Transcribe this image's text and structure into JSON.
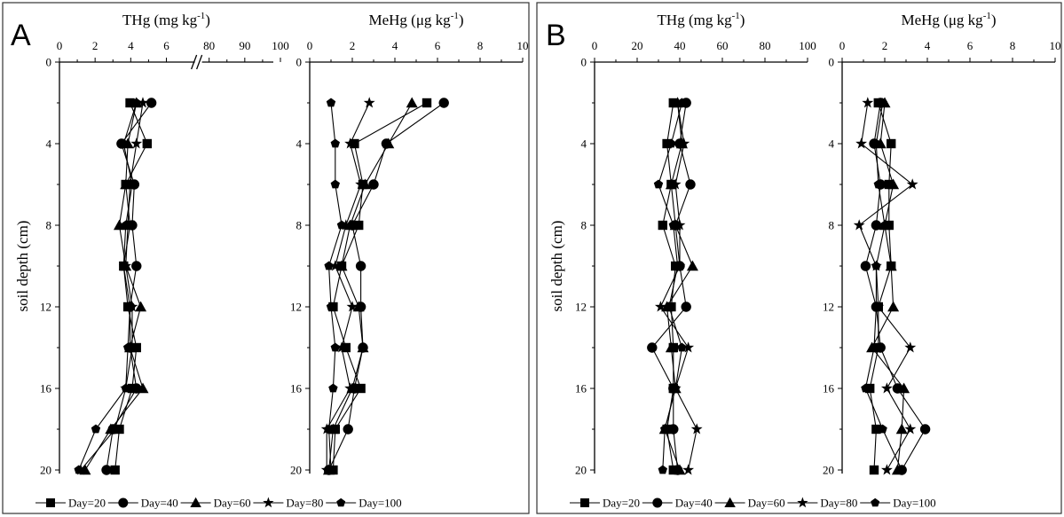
{
  "chart_data": [
    {
      "panel": "A",
      "type": "line",
      "orientation": "depth-profile",
      "title": "THg (mg kg-1)",
      "title_main": "THg (mg kg",
      "title_sup": "-1",
      "ylabel": "soil depth (cm)",
      "ylim": [
        0,
        20
      ],
      "yticks": [
        0,
        4,
        8,
        12,
        16,
        20
      ],
      "xlim": [
        0,
        100
      ],
      "xticks": [
        "0",
        "2",
        "4",
        "6",
        "80",
        "90",
        "100"
      ],
      "axis_break": true,
      "depths": [
        2,
        4,
        6,
        8,
        10,
        12,
        14,
        16,
        18,
        20
      ],
      "series": [
        {
          "name": "Day=20",
          "marker": "square",
          "values": [
            3.3,
            4.1,
            3.1,
            3.3,
            3.0,
            3.2,
            3.6,
            3.4,
            2.8,
            2.6
          ]
        },
        {
          "name": "Day=40",
          "marker": "circle",
          "values": [
            4.3,
            2.9,
            3.5,
            3.4,
            3.6,
            3.3,
            3.3,
            3.6,
            2.5,
            2.2
          ]
        },
        {
          "name": "Day=60",
          "marker": "triangle",
          "values": [
            3.6,
            3.2,
            3.1,
            2.8,
            3.1,
            3.8,
            3.3,
            3.9,
            2.4,
            1.2
          ]
        },
        {
          "name": "Day=80",
          "marker": "star",
          "values": [
            3.9,
            3.6,
            3.3,
            3.2,
            3.1,
            3.4,
            3.4,
            3.1,
            2.6,
            1.0
          ]
        },
        {
          "name": "Day=100",
          "marker": "pentagon",
          "values": [
            3.6,
            3.0,
            3.4,
            3.1,
            3.0,
            3.3,
            3.2,
            3.1,
            1.7,
            0.9
          ]
        }
      ]
    },
    {
      "panel": "A",
      "type": "line",
      "orientation": "depth-profile",
      "title": "MeHg (μg kg-1)",
      "title_main": "MeHg (μg kg",
      "title_sup": "-1",
      "ylim": [
        0,
        20
      ],
      "yticks": [
        0,
        4,
        8,
        12,
        16,
        20
      ],
      "xlim": [
        0,
        10
      ],
      "xticks": [
        "0",
        "2",
        "4",
        "6",
        "8",
        "10"
      ],
      "depths": [
        2,
        4,
        6,
        8,
        10,
        12,
        14,
        16,
        18,
        20
      ],
      "series": [
        {
          "name": "Day=20",
          "marker": "square",
          "values": [
            5.5,
            2.1,
            2.5,
            2.3,
            1.5,
            1.1,
            1.7,
            2.4,
            1.2,
            1.1
          ]
        },
        {
          "name": "Day=40",
          "marker": "circle",
          "values": [
            6.3,
            3.6,
            3.0,
            2.0,
            2.4,
            2.4,
            2.5,
            2.1,
            1.8,
            0.9
          ]
        },
        {
          "name": "Day=60",
          "marker": "triangle",
          "values": [
            4.8,
            3.7,
            2.6,
            1.9,
            1.5,
            2.3,
            2.5,
            2.0,
            1.1,
            0.9
          ]
        },
        {
          "name": "Day=80",
          "marker": "star",
          "values": [
            2.8,
            1.9,
            2.4,
            1.7,
            1.2,
            2.0,
            1.5,
            1.9,
            0.8,
            0.8
          ]
        },
        {
          "name": "Day=100",
          "marker": "pentagon",
          "values": [
            1.0,
            1.2,
            1.2,
            1.5,
            0.9,
            1.0,
            1.2,
            1.1,
            0.9,
            1.0
          ]
        }
      ]
    },
    {
      "panel": "B",
      "type": "line",
      "orientation": "depth-profile",
      "title": "THg (mg kg-1)",
      "title_main": "THg (mg kg",
      "title_sup": "-1",
      "ylabel": "soil depth (cm)",
      "ylim": [
        0,
        20
      ],
      "yticks": [
        0,
        4,
        8,
        12,
        16,
        20
      ],
      "xlim": [
        0,
        100
      ],
      "xticks": [
        "0",
        "20",
        "40",
        "60",
        "80",
        "100"
      ],
      "depths": [
        2,
        4,
        6,
        8,
        10,
        12,
        14,
        16,
        18,
        20
      ],
      "series": [
        {
          "name": "Day=20",
          "marker": "square",
          "values": [
            37,
            34,
            36,
            32,
            38,
            36,
            37,
            37,
            34,
            37
          ]
        },
        {
          "name": "Day=40",
          "marker": "circle",
          "values": [
            43,
            40,
            45,
            38,
            40,
            43,
            27,
            37,
            37,
            39
          ]
        },
        {
          "name": "Day=60",
          "marker": "triangle",
          "values": [
            39,
            41,
            36,
            38,
            46,
            34,
            36,
            38,
            33,
            40
          ]
        },
        {
          "name": "Day=80",
          "marker": "star",
          "values": [
            39,
            42,
            38,
            40,
            40,
            31,
            44,
            38,
            48,
            44
          ]
        },
        {
          "name": "Day=100",
          "marker": "pentagon",
          "values": [
            41,
            36,
            30,
            37,
            39,
            35,
            41,
            38,
            33,
            32
          ]
        }
      ]
    },
    {
      "panel": "B",
      "type": "line",
      "orientation": "depth-profile",
      "title": "MeHg (μg kg-1)",
      "title_main": "MeHg (μg kg",
      "title_sup": "-1",
      "ylim": [
        0,
        20
      ],
      "yticks": [
        0,
        4,
        8,
        12,
        16,
        20
      ],
      "xlim": [
        0,
        10
      ],
      "xticks": [
        "0",
        "2",
        "4",
        "6",
        "8",
        "10"
      ],
      "depths": [
        2,
        4,
        6,
        8,
        10,
        12,
        14,
        16,
        18,
        20
      ],
      "series": [
        {
          "name": "Day=20",
          "marker": "square",
          "values": [
            1.7,
            2.3,
            2.2,
            2.2,
            2.3,
            1.7,
            1.7,
            1.3,
            1.6,
            1.5
          ]
        },
        {
          "name": "Day=40",
          "marker": "circle",
          "values": [
            1.8,
            1.5,
            1.8,
            1.6,
            1.1,
            1.6,
            1.8,
            2.6,
            3.9,
            2.8
          ]
        },
        {
          "name": "Day=60",
          "marker": "triangle",
          "values": [
            2.0,
            1.8,
            2.4,
            2.0,
            2.3,
            2.4,
            1.4,
            2.9,
            2.8,
            2.6
          ]
        },
        {
          "name": "Day=80",
          "marker": "star",
          "values": [
            1.2,
            0.9,
            3.3,
            0.8,
            1.6,
            1.7,
            3.2,
            2.1,
            3.2,
            2.1
          ]
        },
        {
          "name": "Day=100",
          "marker": "pentagon",
          "values": [
            1.9,
            1.6,
            1.7,
            2.0,
            1.6,
            1.6,
            1.5,
            1.1,
            1.9,
            2.8
          ]
        }
      ]
    }
  ],
  "legend": [
    {
      "label": "Day=20",
      "marker": "square"
    },
    {
      "label": "Day=40",
      "marker": "circle"
    },
    {
      "label": "Day=60",
      "marker": "triangle"
    },
    {
      "label": "Day=80",
      "marker": "star"
    },
    {
      "label": "Day=100",
      "marker": "pentagon"
    }
  ]
}
